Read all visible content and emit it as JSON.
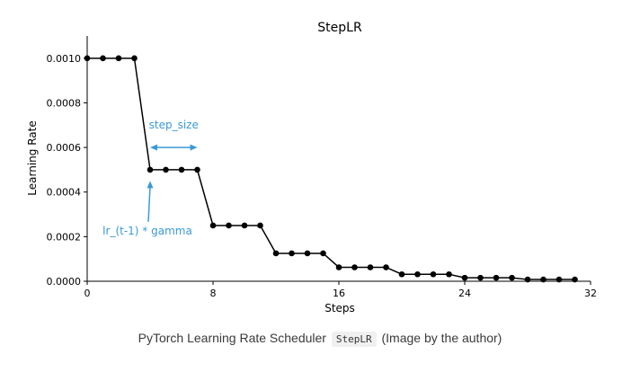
{
  "chart_data": {
    "type": "line",
    "title": "StepLR",
    "xlabel": "Steps",
    "ylabel": "Learning Rate",
    "xlim": [
      0,
      32
    ],
    "ylim": [
      0,
      0.0011
    ],
    "xticks": [
      0,
      8,
      16,
      24,
      32
    ],
    "xtick_labels": [
      "0",
      "8",
      "16",
      "24",
      "32"
    ],
    "yticks": [
      0,
      0.0002,
      0.0004,
      0.0006,
      0.0008,
      0.001
    ],
    "ytick_labels": [
      "0.0000",
      "0.0002",
      "0.0004",
      "0.0006",
      "0.0008",
      "0.0010"
    ],
    "grid": false,
    "series": [
      {
        "x": [
          0,
          1,
          2,
          3,
          4,
          5,
          6,
          7,
          8,
          9,
          10,
          11,
          12,
          13,
          14,
          15,
          16,
          17,
          18,
          19,
          20,
          21,
          22,
          23,
          24,
          25,
          26,
          27,
          28,
          29,
          30,
          31
        ],
        "values": [
          0.001,
          0.001,
          0.001,
          0.001,
          0.0005,
          0.0005,
          0.0005,
          0.0005,
          0.00025,
          0.00025,
          0.00025,
          0.00025,
          0.000125,
          0.000125,
          0.000125,
          0.000125,
          6.25e-05,
          6.25e-05,
          6.25e-05,
          6.25e-05,
          3.125e-05,
          3.125e-05,
          3.125e-05,
          3.125e-05,
          1.5625e-05,
          1.5625e-05,
          1.5625e-05,
          1.5625e-05,
          7.8125e-06,
          7.8125e-06,
          7.8125e-06,
          7.8125e-06
        ],
        "color": "#000000"
      }
    ],
    "annotations": [
      {
        "text": "step_size",
        "kind": "double-arrow",
        "x_from": 4,
        "x_to": 7,
        "y": 0.0006,
        "color": "#3b9ad6"
      },
      {
        "text": "lr_(t-1) * gamma",
        "kind": "arrow",
        "text_x": 4,
        "text_y": 0.00021,
        "arrow_to_x": 4,
        "arrow_to_y": 0.00045,
        "color": "#3b9ad6"
      }
    ]
  },
  "caption": {
    "before": "PyTorch Learning Rate Scheduler",
    "code": "StepLR",
    "after": "(Image by the author)"
  }
}
